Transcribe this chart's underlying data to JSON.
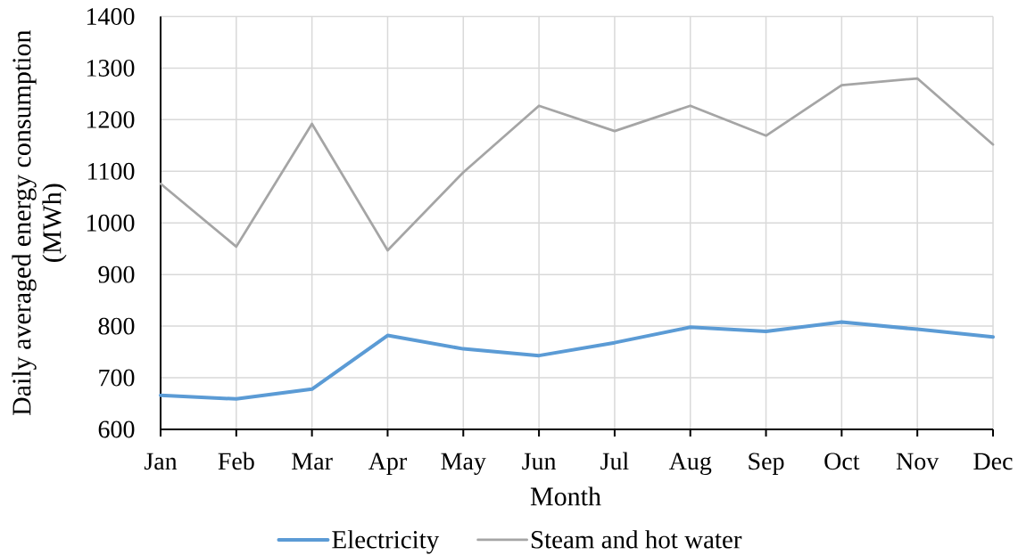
{
  "chart_data": {
    "type": "line",
    "xlabel": "Month",
    "ylabel": "Daily averaged energy consumption (MWh)",
    "categories": [
      "Jan",
      "Feb",
      "Mar",
      "Apr",
      "May",
      "Jun",
      "Jul",
      "Aug",
      "Sep",
      "Oct",
      "Nov",
      "Dec"
    ],
    "series": [
      {
        "name": "Electricity",
        "color": "#5b9bd5",
        "values": [
          666,
          659,
          678,
          782,
          756,
          743,
          768,
          798,
          790,
          808,
          794,
          779
        ]
      },
      {
        "name": "Steam and hot water",
        "color": "#a5a5a5",
        "values": [
          1076,
          954,
          1192,
          947,
          1098,
          1227,
          1178,
          1227,
          1169,
          1267,
          1280,
          1152
        ]
      }
    ],
    "ylim": [
      600,
      1400
    ],
    "yticks": [
      600,
      700,
      800,
      900,
      1000,
      1100,
      1200,
      1300,
      1400
    ],
    "grid": true,
    "legend": "bottom",
    "line_style": "solid"
  }
}
